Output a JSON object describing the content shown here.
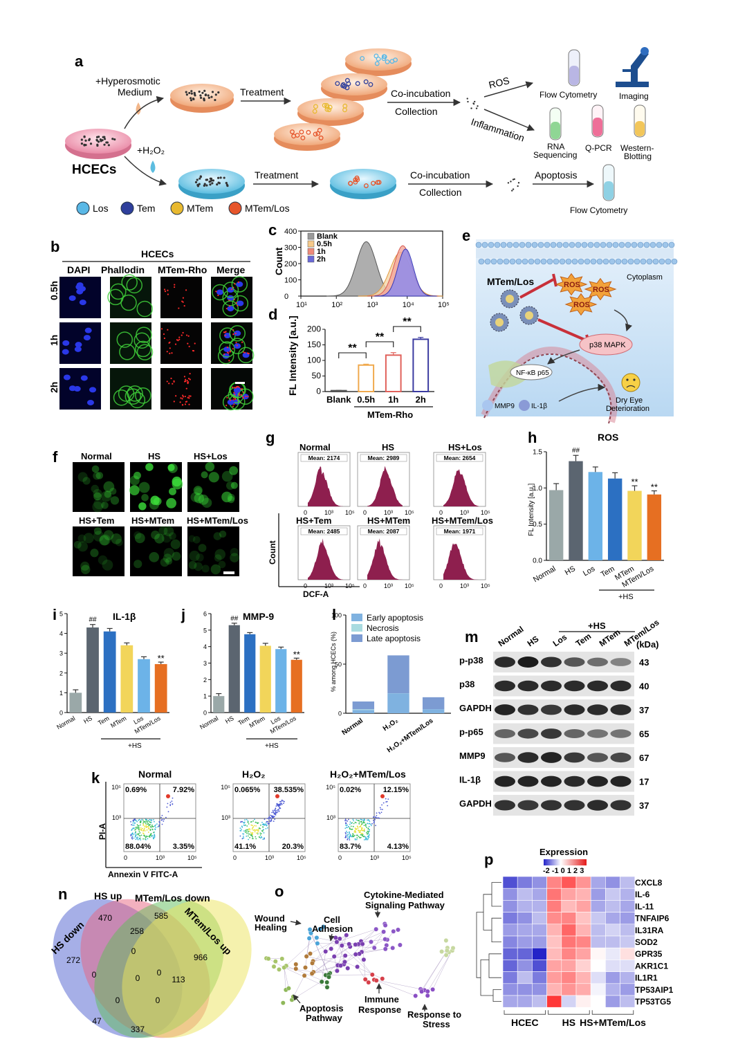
{
  "panel_letters": {
    "a": "a",
    "b": "b",
    "c": "c",
    "d": "d",
    "e": "e",
    "f": "f",
    "g": "g",
    "h": "h",
    "i": "i",
    "j": "j",
    "k": "k",
    "l": "l",
    "m": "m",
    "n": "n",
    "o": "o",
    "p": "p"
  },
  "a": {
    "hyperosmotic": "+Hyperosmotic",
    "medium": "Medium",
    "h2o2": "+H₂O₂",
    "cells": "HCECs",
    "treatment": "Treatment",
    "coincubation": "Co-incubation",
    "collection": "Collection",
    "ros": "ROS",
    "inflammation": "Inflammation",
    "apoptosis": "Apoptosis",
    "flow_cytometry": "Flow Cytometry",
    "imaging": "Imaging",
    "rna_seq_1": "RNA",
    "rna_seq_2": "Sequencing",
    "qpcr": "Q-PCR",
    "western_1": "Western-",
    "western_2": "Blotting",
    "legend": [
      {
        "label": "Los",
        "color": "#5ab8e6"
      },
      {
        "label": "Tem",
        "color": "#2f3f9c"
      },
      {
        "label": "MTem",
        "color": "#e8b930"
      },
      {
        "label": "MTem/Los",
        "color": "#e6552b"
      }
    ]
  },
  "b": {
    "title": "HCECs",
    "columns": [
      "DAPI",
      "Phallodin",
      "MTem-Rho",
      "Merge"
    ],
    "rows": [
      "0.5h",
      "1h",
      "2h"
    ]
  },
  "c": {
    "ylabel": "Count",
    "yticks": [
      "0",
      "100",
      "200",
      "300",
      "400"
    ],
    "xticks": [
      "10¹",
      "10²",
      "10³",
      "10⁴",
      "10⁵"
    ],
    "legend": [
      {
        "label": "Blank",
        "color": "#9a9a9a"
      },
      {
        "label": "0.5h",
        "color": "#f5c98a"
      },
      {
        "label": "1h",
        "color": "#ee8a7a"
      },
      {
        "label": "2h",
        "color": "#6a6ad8"
      }
    ]
  },
  "d": {
    "ylabel": "FL Intensity [a.u.]",
    "group_label": "MTem-Rho",
    "sig": "**"
  },
  "e": {
    "cytoplasm": "Cytoplasm",
    "np": "MTem/Los",
    "ros": "ROS",
    "p38": "p38 MAPK",
    "nfkb": "NF-κB p65",
    "mmp9": "MMP9",
    "il1b": "IL-1β",
    "dry_eye_1": "Dry Eye",
    "dry_eye_2": "Deterioration"
  },
  "f": {
    "labels": [
      "Normal",
      "HS",
      "HS+Los",
      "HS+Tem",
      "HS+MTem",
      "HS+MTem/Los"
    ]
  },
  "g": {
    "panels": [
      {
        "label": "Normal",
        "mean": "Mean: 2174"
      },
      {
        "label": "HS",
        "mean": "Mean: 2989"
      },
      {
        "label": "HS+Los",
        "mean": "Mean: 2654"
      },
      {
        "label": "HS+Tem",
        "mean": "Mean: 2485"
      },
      {
        "label": "HS+MTem",
        "mean": "Mean: 2087"
      },
      {
        "label": "HS+MTem/Los",
        "mean": "Mean: 1971"
      }
    ],
    "ylabel": "Count",
    "xlabel": "DCF-A",
    "xticks": [
      "0",
      "10³",
      "10⁵"
    ]
  },
  "h": {
    "title": "ROS",
    "ylabel": "FL Intensity [a.u.]",
    "group": "+HS",
    "hash": "##",
    "sig": "**"
  },
  "i": {
    "title": "IL-1β",
    "group": "+HS",
    "hash": "##",
    "sig": "**"
  },
  "j": {
    "title": "MMP-9",
    "group": "+HS",
    "hash": "##",
    "sig": "**"
  },
  "k": {
    "panels": [
      {
        "label": "Normal",
        "ul": "0.69%",
        "ur": "7.92%",
        "ll": "88.04%",
        "lr": "3.35%"
      },
      {
        "label": "H₂O₂",
        "ul": "0.065%",
        "ur": "38.535%",
        "ll": "41.1%",
        "lr": "20.3%"
      },
      {
        "label": "H₂O₂+MTem/Los",
        "ul": "0.02%",
        "ur": "12.15%",
        "ll": "83.7%",
        "lr": "4.13%"
      }
    ],
    "ylabel": "PI-A",
    "xlabel": "Annexin V FITC-A",
    "yticks": [
      "10⁵",
      "10³"
    ],
    "xticks": [
      "0",
      "10³",
      "10⁵"
    ]
  },
  "l": {
    "ylabel": "% among HCECs (%)",
    "legend": [
      {
        "label": "Early apoptosis",
        "color": "#7fb2e0"
      },
      {
        "label": "Necrosis",
        "color": "#a9dbe0"
      },
      {
        "label": "Late apoptosis",
        "color": "#7c9bd2"
      }
    ]
  },
  "m": {
    "lanes": [
      "Normal",
      "HS",
      "Los",
      "Tem",
      "MTem",
      "MTem/Los"
    ],
    "group": "+HS",
    "kda": "(kDa)",
    "rows": [
      {
        "label": "p-p38",
        "kda": "43"
      },
      {
        "label": "p38",
        "kda": "40"
      },
      {
        "label": "GAPDH",
        "kda": "37"
      },
      {
        "label": "p-p65",
        "kda": "65"
      },
      {
        "label": "MMP9",
        "kda": "67"
      },
      {
        "label": "IL-1β",
        "kda": "17"
      },
      {
        "label": "GAPDH",
        "kda": "37"
      }
    ]
  },
  "n": {
    "sets": [
      "HS down",
      "HS up",
      "MTem/Los down",
      "MTem/Los up"
    ],
    "counts": [
      "470",
      "585",
      "272",
      "258",
      "966",
      "0",
      "0",
      "0",
      "47",
      "0",
      "113",
      "0",
      "0",
      "337"
    ]
  },
  "o": {
    "labels": [
      "Wound",
      "Healing",
      "Cell",
      "Adhesion",
      "Cytokine-Mediated",
      "Signaling Pathway",
      "Apoptosis",
      "Pathway",
      "Immune",
      "Response",
      "Response to",
      "Stress"
    ]
  },
  "p": {
    "title": "Expression",
    "scale": "-2 -1 0 1 2 3",
    "genes": [
      "CXCL8",
      "IL-6",
      "IL-11",
      "TNFAIP6",
      "IL31RA",
      "SOD2",
      "GPR35",
      "AKR1C1",
      "IL1R1",
      "TP53AIP1",
      "TP53TG5"
    ],
    "groups": [
      "HCEC",
      "HS",
      "HS+MTem/Los"
    ]
  },
  "chart_data": [
    {
      "panel": "c",
      "type": "area",
      "x_scale": "log",
      "xlim": [
        10,
        100000
      ],
      "ylim": [
        0,
        400
      ],
      "ylabel": "Count",
      "series": [
        {
          "name": "Blank",
          "peak_x": 700,
          "peak_y": 335
        },
        {
          "name": "0.5h",
          "peak_x": 6500,
          "peak_y": 270
        },
        {
          "name": "1h",
          "peak_x": 7500,
          "peak_y": 310
        },
        {
          "name": "2h",
          "peak_x": 9000,
          "peak_y": 290
        }
      ]
    },
    {
      "panel": "d",
      "type": "bar",
      "categories": [
        "Blank",
        "0.5h",
        "1h",
        "2h"
      ],
      "values": [
        3,
        85,
        117,
        168
      ],
      "errors": [
        1,
        3,
        8,
        6
      ],
      "ylim": [
        0,
        200
      ],
      "yticks": [
        0,
        50,
        100,
        150,
        200
      ],
      "ylabel": "FL Intensity [a.u.]",
      "colors": [
        "#555555",
        "#f0a94d",
        "#e0605a",
        "#3a3aa0"
      ]
    },
    {
      "panel": "h",
      "type": "bar",
      "categories": [
        "Normal",
        "HS",
        "Los",
        "Tem",
        "MTem",
        "MTem/Los"
      ],
      "values": [
        0.97,
        1.37,
        1.22,
        1.13,
        0.96,
        0.91
      ],
      "errors": [
        0.09,
        0.08,
        0.07,
        0.08,
        0.07,
        0.05
      ],
      "ylim": [
        0,
        1.5
      ],
      "yticks": [
        0.0,
        0.5,
        1.0,
        1.5
      ],
      "colors": [
        "#9aa8a8",
        "#5b6570",
        "#6cb3e8",
        "#2c70c2",
        "#f2d55a",
        "#e66f22"
      ]
    },
    {
      "panel": "i",
      "type": "bar",
      "categories": [
        "Normal",
        "HS",
        "Tem",
        "MTem",
        "Los",
        "MTem/Los"
      ],
      "values": [
        1.0,
        4.3,
        4.1,
        3.4,
        2.7,
        2.45
      ],
      "errors": [
        0.15,
        0.15,
        0.15,
        0.12,
        0.12,
        0.1
      ],
      "ylim": [
        0,
        5
      ],
      "yticks": [
        0,
        1,
        2,
        3,
        4,
        5
      ],
      "colors": [
        "#9aa8a8",
        "#5b6570",
        "#2c70c2",
        "#f2d55a",
        "#6cb3e8",
        "#e66f22"
      ]
    },
    {
      "panel": "j",
      "type": "bar",
      "categories": [
        "Normal",
        "HS",
        "Tem",
        "MTem",
        "Los",
        "MTem/Los"
      ],
      "values": [
        1.0,
        5.3,
        4.75,
        4.05,
        3.85,
        3.2
      ],
      "errors": [
        0.15,
        0.12,
        0.1,
        0.15,
        0.12,
        0.1
      ],
      "ylim": [
        0,
        6
      ],
      "yticks": [
        0,
        1,
        2,
        3,
        4,
        5,
        6
      ],
      "colors": [
        "#9aa8a8",
        "#5b6570",
        "#2c70c2",
        "#f2d55a",
        "#6cb3e8",
        "#e66f22"
      ]
    },
    {
      "panel": "l",
      "type": "bar",
      "stacked": true,
      "categories": [
        "Normal",
        "H₂O₂",
        "H₂O₂+MTem/Los"
      ],
      "series": [
        {
          "name": "Early apoptosis",
          "values": [
            3.35,
            20.3,
            4.13
          ]
        },
        {
          "name": "Necrosis",
          "values": [
            0.69,
            0.07,
            0.02
          ]
        },
        {
          "name": "Late apoptosis",
          "values": [
            7.92,
            38.54,
            12.15
          ]
        }
      ],
      "ylim": [
        0,
        100
      ],
      "yticks": [
        0,
        50,
        100
      ],
      "ylabel": "% among HCECs (%)"
    },
    {
      "panel": "p",
      "type": "heatmap",
      "rows": [
        "CXCL8",
        "IL-6",
        "IL-11",
        "TNFAIP6",
        "IL31RA",
        "SOD2",
        "GPR35",
        "AKR1C1",
        "IL1R1",
        "TP53AIP1",
        "TP53TG5"
      ],
      "col_groups": [
        "HCEC",
        "HCEC",
        "HCEC",
        "HS",
        "HS",
        "HS",
        "HS+MTem/Los",
        "HS+MTem/Los",
        "HS+MTem/Los"
      ],
      "values": [
        [
          -1.6,
          -1.2,
          -1.0,
          1.6,
          2.2,
          1.4,
          -0.8,
          -1.0,
          -0.6
        ],
        [
          -1.0,
          -0.6,
          -0.8,
          1.8,
          1.2,
          1.0,
          -0.9,
          -0.5,
          -0.7
        ],
        [
          -1.0,
          -0.7,
          -0.7,
          1.7,
          0.9,
          1.2,
          -0.8,
          -0.6,
          -0.8
        ],
        [
          -1.2,
          -1.0,
          -0.6,
          1.5,
          1.6,
          0.8,
          -0.5,
          -0.8,
          -0.9
        ],
        [
          -0.9,
          -0.8,
          -0.8,
          1.0,
          2.0,
          1.0,
          -0.6,
          -0.4,
          -0.6
        ],
        [
          -1.1,
          -0.9,
          -0.9,
          0.8,
          1.8,
          1.6,
          -0.6,
          -0.6,
          -0.5
        ],
        [
          -1.4,
          -1.4,
          -2.0,
          0.9,
          1.6,
          1.2,
          0.1,
          -0.2,
          0.4
        ],
        [
          -1.4,
          -1.0,
          -1.6,
          1.2,
          1.2,
          0.6,
          0.0,
          -0.3,
          -0.3
        ],
        [
          -1.2,
          -0.6,
          -1.2,
          1.3,
          1.6,
          1.0,
          -0.3,
          -0.9,
          -0.7
        ],
        [
          -1.0,
          -1.0,
          -1.0,
          1.0,
          1.4,
          1.1,
          -0.1,
          -0.7,
          -0.9
        ],
        [
          -0.8,
          -0.8,
          -0.6,
          2.6,
          -0.4,
          0.2,
          0.0,
          -0.9,
          -0.6
        ]
      ],
      "scale_range": [
        -2,
        3
      ]
    }
  ]
}
